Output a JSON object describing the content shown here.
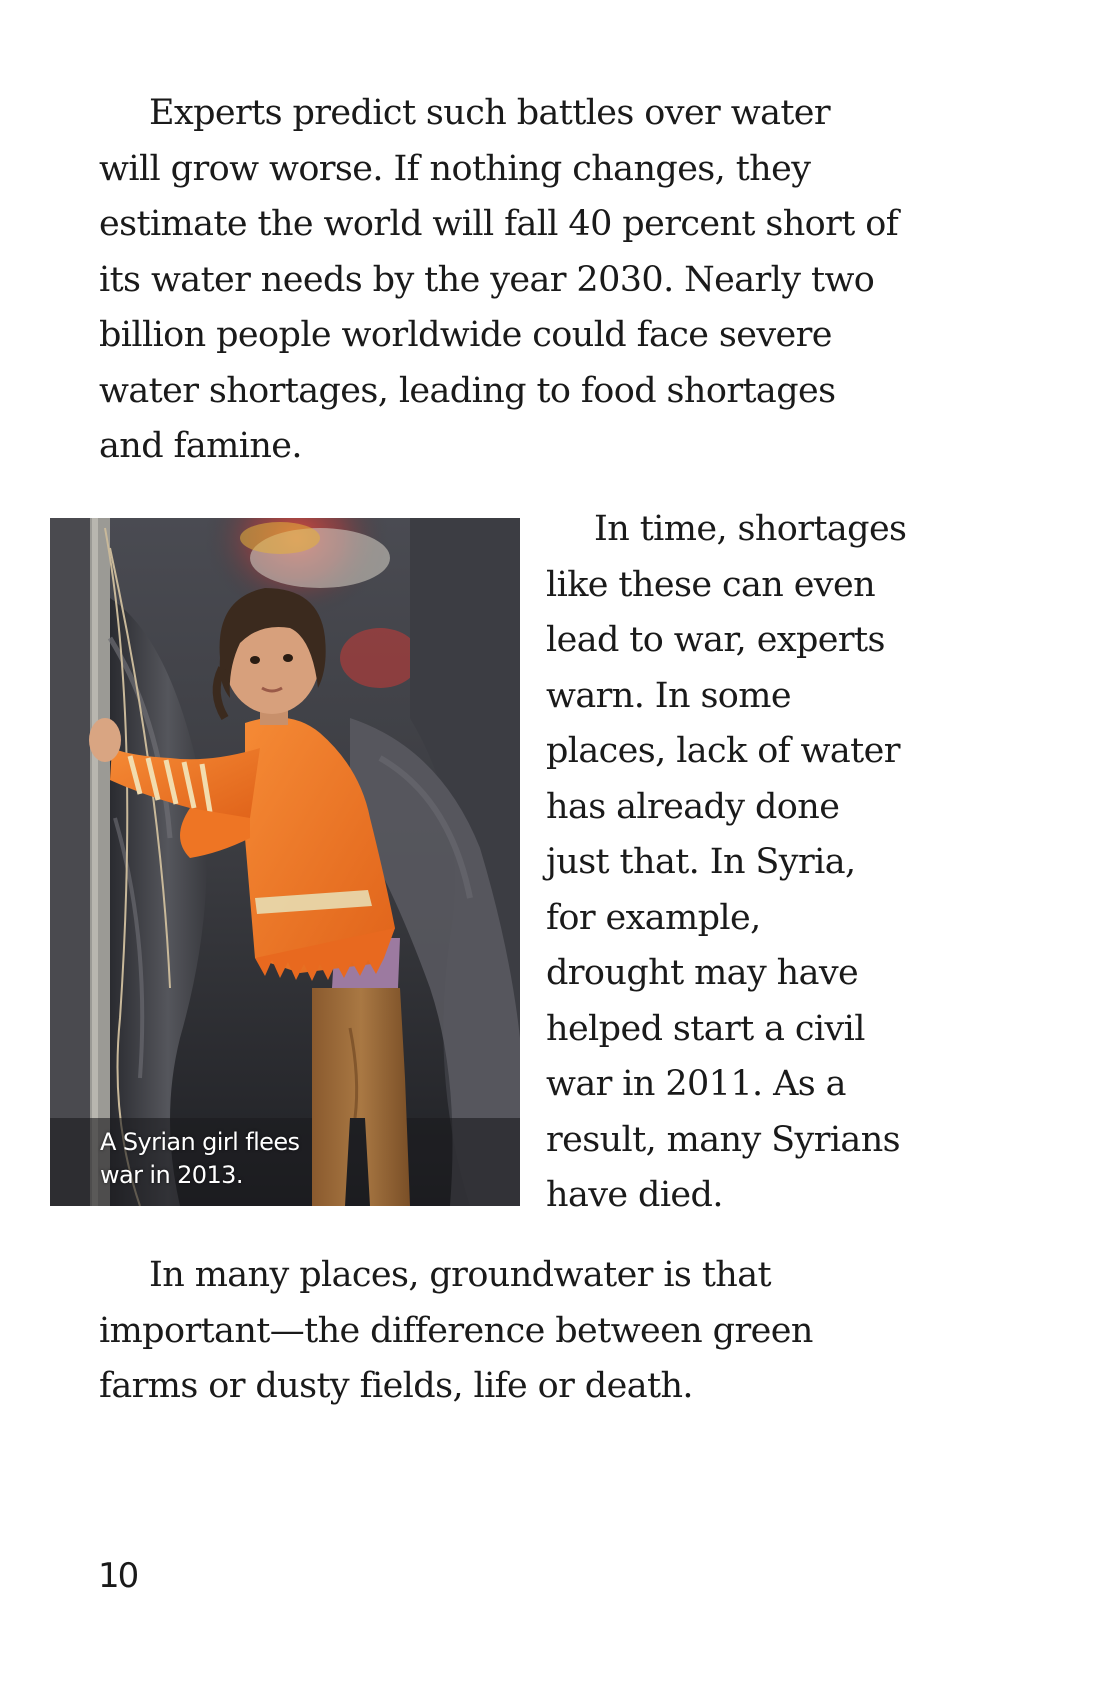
{
  "paragraphs": [
    {
      "lines": [
        "Experts predict such battles over water",
        "will grow worse. If nothing changes, they",
        "estimate the world will fall 40 percent short of",
        "its water needs by the year 2030. Nearly two",
        "billion people worldwide could face severe",
        "water shortages, leading to food shortages",
        "and famine."
      ]
    },
    {
      "lines": [
        "In time, shortages",
        "like these can even",
        "lead to war, experts",
        "warn. In some",
        "places, lack of water",
        "has already done",
        "just that. In Syria,",
        "for example,",
        "drought may have",
        "helped start a civil",
        "war in 2011. As a",
        "result, many Syrians",
        "have died."
      ]
    },
    {
      "lines": [
        "In many places, groundwater is that",
        "important—the difference between green",
        "farms or dusty fields, life or death."
      ]
    }
  ],
  "photo": {
    "subject": "girl-in-orange-sweater",
    "caption_lines": [
      "A Syrian girl flees",
      "war in 2013."
    ]
  },
  "page_number": "10",
  "colors": {
    "text": "#1a1a1a",
    "background": "#ffffff",
    "sweater": "#f07a25",
    "caption": "#ffffff"
  }
}
